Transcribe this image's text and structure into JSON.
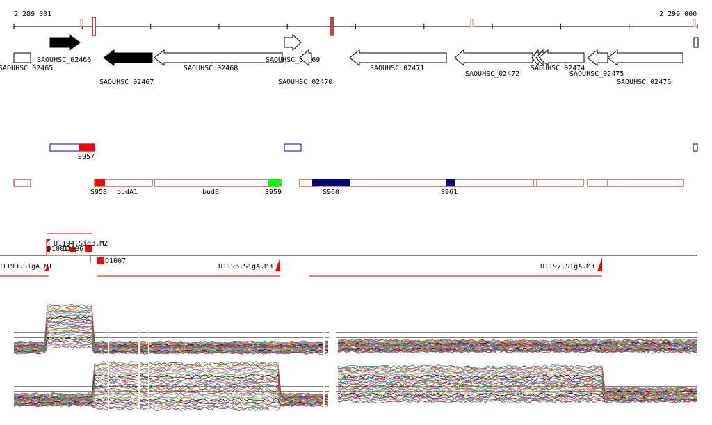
{
  "coordinates": {
    "start_label": "2 289 001",
    "end_label": "2 299 000"
  },
  "genes": [
    {
      "label": "SAOUHSC_02465",
      "strand": "none",
      "filled": false
    },
    {
      "label": "SAOUHSC_02466",
      "strand": "+",
      "filled": true
    },
    {
      "label": "SAOUHSC_02467",
      "strand": "-",
      "filled": true
    },
    {
      "label": "SAOUHSC_02468",
      "strand": "-",
      "filled": false
    },
    {
      "label": "SAOUHSC_02469",
      "strand": "+",
      "filled": false
    },
    {
      "label": "SAOUHSC_02470",
      "strand": "-",
      "filled": false
    },
    {
      "label": "SAOUHSC_02471",
      "strand": "-",
      "filled": false
    },
    {
      "label": "SAOUHSC_02472",
      "strand": "-",
      "filled": false
    },
    {
      "label": "SAOUHSC_02474",
      "strand": "-",
      "filled": false
    },
    {
      "label": "SAOUHSC_02475",
      "strand": "-",
      "filled": false
    },
    {
      "label": "SAOUHSC_02476",
      "strand": "-",
      "filled": false
    }
  ],
  "plus_segments": [
    {
      "label": "S957",
      "color": "#ff0000"
    }
  ],
  "minus_segments": [
    {
      "label": "S958",
      "color": "#ff0000"
    },
    {
      "label": "budA1",
      "color": "none"
    },
    {
      "label": "budB",
      "color": "none"
    },
    {
      "label": "S959",
      "color": "#00ff00"
    },
    {
      "label": "S960",
      "color": "#000080"
    },
    {
      "label": "S961",
      "color": "#000080"
    }
  ],
  "transcripts": [
    {
      "label": "U1194.SigB.M2"
    },
    {
      "label": "D1005"
    },
    {
      "label": "D1006"
    },
    {
      "label": "D1007"
    },
    {
      "label": "U1193.SigA.M1"
    },
    {
      "label": "U1196.SigA.M3"
    },
    {
      "label": "U1197.SigA.M3"
    }
  ],
  "colors": {
    "segment_outline": "#cc0000",
    "plus_outline": "#0000aa",
    "highlight_red": "#ff0000",
    "highlight_green": "#00ff00",
    "highlight_navy": "#000080"
  }
}
